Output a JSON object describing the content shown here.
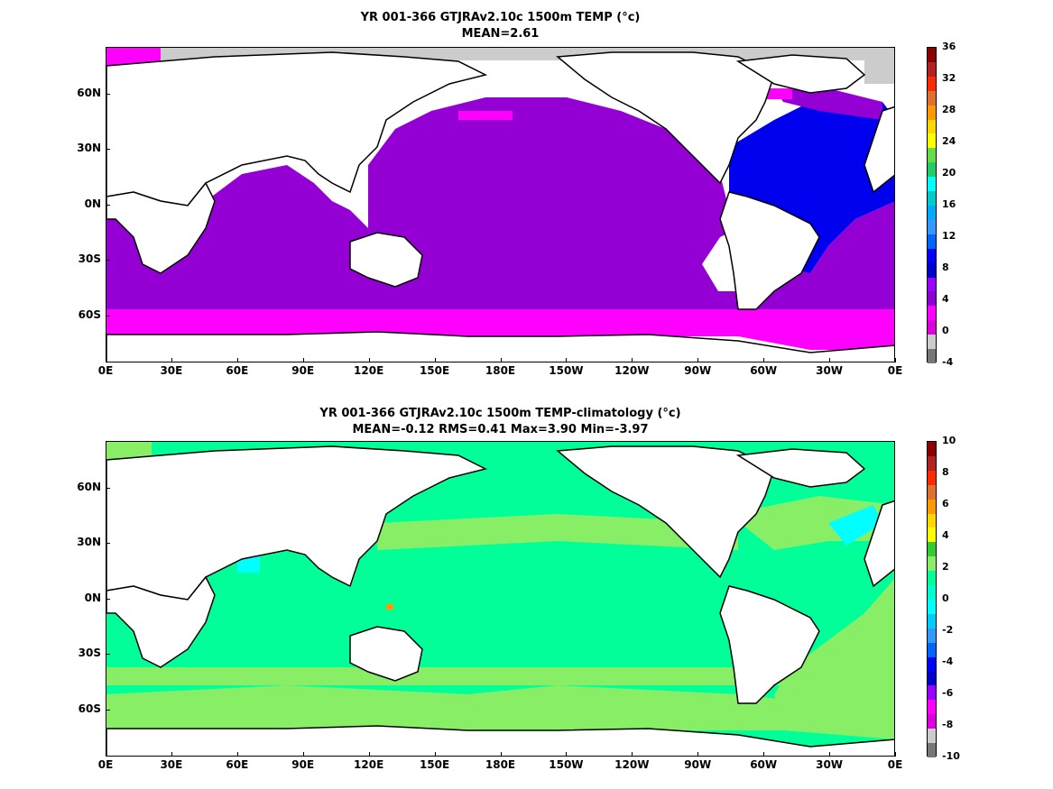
{
  "panels": [
    {
      "title_line1": "YR 001-366 GTJRAv2.10c 1500m TEMP (°c)",
      "title_line2": "MEAN=2.61",
      "colorbar_labels": [
        "36",
        "32",
        "28",
        "24",
        "20",
        "16",
        "12",
        "8",
        "4",
        "0",
        "-4"
      ],
      "colorbar_colors": [
        "#8b0000",
        "#b22222",
        "#ff2a00",
        "#e07030",
        "#ff9900",
        "#ffd700",
        "#ffff00",
        "#66dd44",
        "#22cc66",
        "#00ffff",
        "#00cccc",
        "#00aaff",
        "#3399ff",
        "#0066ff",
        "#0000ff",
        "#0000cc",
        "#9900ff",
        "#8a00d4",
        "#ff00ff",
        "#dd00dd",
        "#cccccc",
        "#777777"
      ]
    },
    {
      "title_line1": "YR 001-366 GTJRAv2.10c 1500m TEMP-climatology (°c)",
      "title_line2": "MEAN=-0.12   RMS=0.41   Max=3.90   Min=-3.97",
      "colorbar_labels": [
        "10",
        "8",
        "6",
        "4",
        "2",
        "0",
        "-2",
        "-4",
        "-6",
        "-8",
        "-10"
      ],
      "colorbar_colors": [
        "#8b0000",
        "#b22222",
        "#ff2a00",
        "#e07030",
        "#ff9900",
        "#ffd700",
        "#ffff00",
        "#33cc33",
        "#88ee66",
        "#00ff99",
        "#00ffcc",
        "#00ffff",
        "#00ccff",
        "#3399ff",
        "#0066ff",
        "#0000ff",
        "#0000cc",
        "#9900ff",
        "#ff00ff",
        "#dd00dd",
        "#cccccc",
        "#777777"
      ]
    }
  ],
  "y_labels": [
    "60N",
    "30N",
    "0N",
    "30S",
    "60S"
  ],
  "x_labels": [
    "0E",
    "30E",
    "60E",
    "90E",
    "120E",
    "150E",
    "180E",
    "150W",
    "120W",
    "90W",
    "60W",
    "30W",
    "0E"
  ]
}
